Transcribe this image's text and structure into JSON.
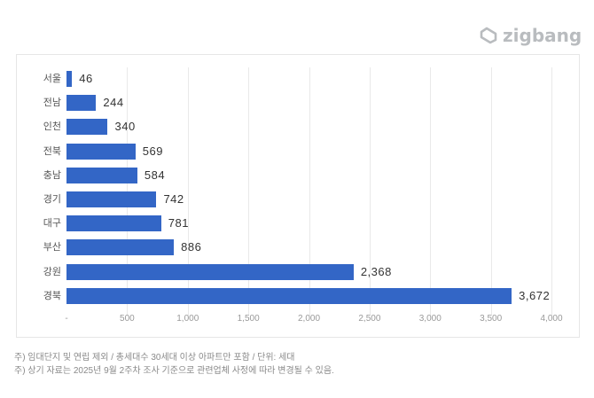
{
  "brand": {
    "logo_text": "zigbang",
    "logo_color": "#b9bcbf"
  },
  "chart_data": {
    "type": "bar",
    "orientation": "horizontal",
    "title": "",
    "xlabel": "",
    "ylabel": "",
    "categories": [
      "서울",
      "전남",
      "인천",
      "전북",
      "충남",
      "경기",
      "대구",
      "부산",
      "강원",
      "경북"
    ],
    "values": [
      46,
      244,
      340,
      569,
      584,
      742,
      781,
      886,
      2368,
      3672
    ],
    "value_labels": [
      "46",
      "244",
      "340",
      "569",
      "584",
      "742",
      "781",
      "886",
      "2,368",
      "3,672"
    ],
    "xlim": [
      0,
      4000
    ],
    "x_ticks": [
      0,
      500,
      1000,
      1500,
      2000,
      2500,
      3000,
      3500,
      4000
    ],
    "x_tick_labels": [
      "-",
      "500",
      "1,000",
      "1,500",
      "2,000",
      "2,500",
      "3,000",
      "3,500",
      "4,000"
    ],
    "grid": "vertical",
    "legend": "none",
    "bar_color": "#3366c6",
    "unit": "세대"
  },
  "notes": [
    "주) 임대단지 및 연립 제외 / 총세대수 30세대 이상 아파트만 포함 / 단위: 세대",
    "주) 상기 자료는 2025년 9월 2주차 조사 기준으로 관련업체 사정에 따라 변경될 수 있음."
  ]
}
